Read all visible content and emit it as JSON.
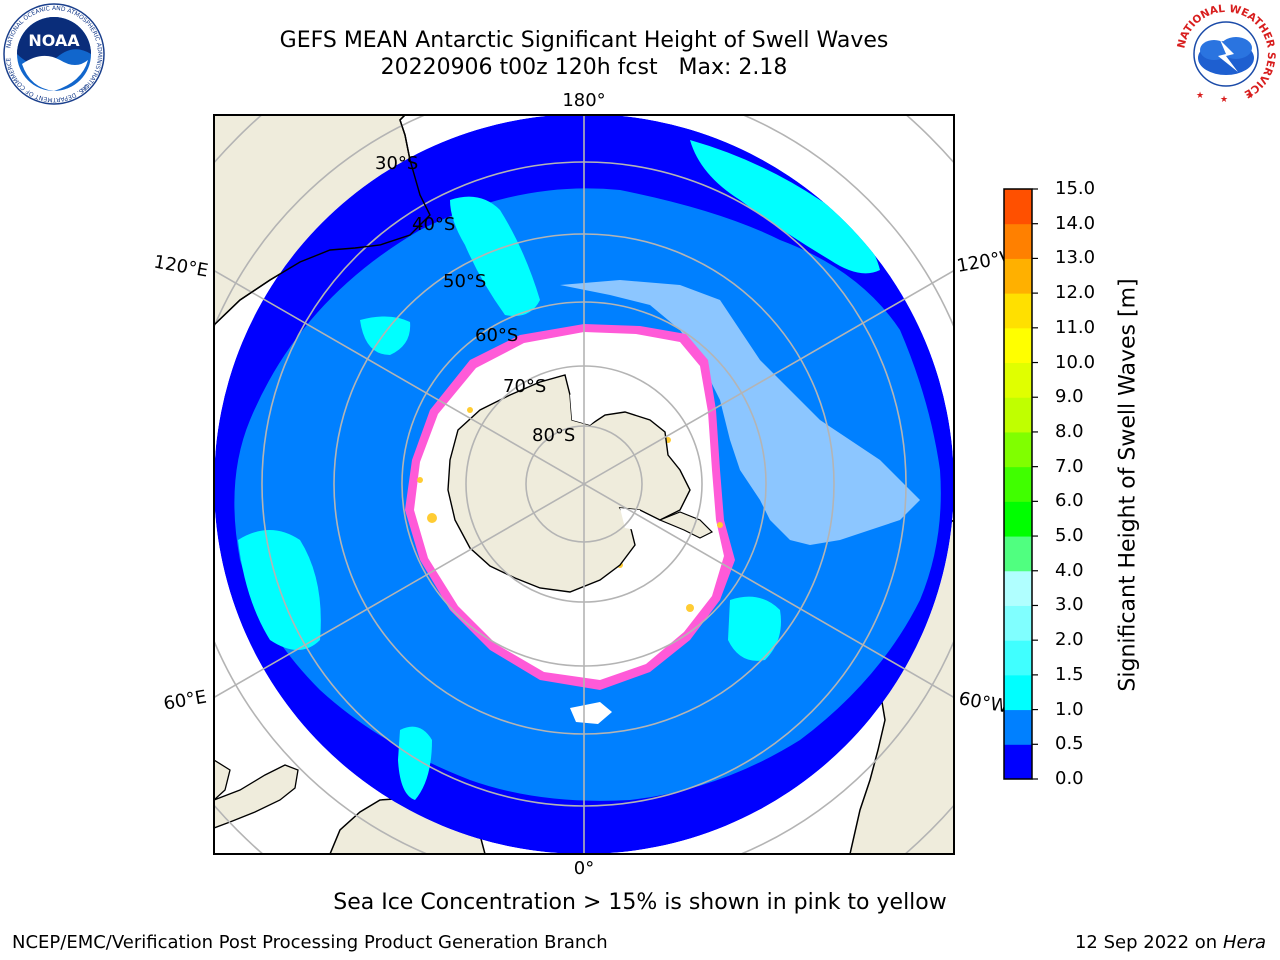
{
  "header": {
    "title_line1": "GEFS MEAN Antarctic Significant Height of Swell Waves",
    "title_line2": "20220906 t00z 120h fcst   Max: 2.18"
  },
  "logos": {
    "left": "NOAA",
    "left_ring": "NATIONAL OCEANIC AND ATMOSPHERIC ADMINISTRATION",
    "left_ring_bottom": "U.S. DEPARTMENT OF COMMERCE",
    "right": "NATIONAL WEATHER SERVICE"
  },
  "map": {
    "projection": "south-polar-stereographic",
    "longitude_labels": {
      "top": "180°",
      "bottom": "0°",
      "left_upper": "120°E",
      "left_lower": "60°E",
      "right_upper": "120°W",
      "right_lower": "60°W"
    },
    "latitude_labels": [
      "30°S",
      "40°S",
      "50°S",
      "60°S",
      "70°S",
      "80°S"
    ],
    "colors": {
      "land": "#efecdc",
      "ice": "#ffffff",
      "ice_edge_pink": "#ff5ad8",
      "ice_edge_yellow": "#ffcc33",
      "grid": "#b4b4b4"
    }
  },
  "colorbar": {
    "title": "Significant Height of Swell Waves [m]",
    "ticks": [
      "15.0",
      "14.0",
      "13.0",
      "12.0",
      "11.0",
      "10.0",
      "9.0",
      "8.0",
      "7.0",
      "6.0",
      "5.0",
      "4.0",
      "3.0",
      "2.0",
      "1.5",
      "1.0",
      "0.5",
      "0.0"
    ],
    "colors": [
      "#0000ff",
      "#0080ff",
      "#00ffff",
      "#40ffff",
      "#80ffff",
      "#b0ffff",
      "#50ff80",
      "#00ff00",
      "#40ff00",
      "#80ff00",
      "#c0ff00",
      "#e0ff00",
      "#ffff00",
      "#ffe000",
      "#ffb000",
      "#ff8000",
      "#ff5000",
      "#ff0000"
    ]
  },
  "footer": {
    "note": "Sea Ice Concentration > 15% is shown in pink to yellow",
    "credit_left": "NCEP/EMC/Verification Post Processing Product Generation Branch",
    "date": "12 Sep 2022",
    "on_word": "on",
    "machine": "Hera"
  }
}
